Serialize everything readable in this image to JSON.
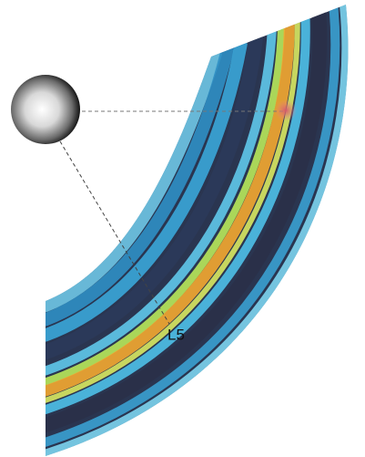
{
  "labels": {
    "marker": "L5"
  }
}
